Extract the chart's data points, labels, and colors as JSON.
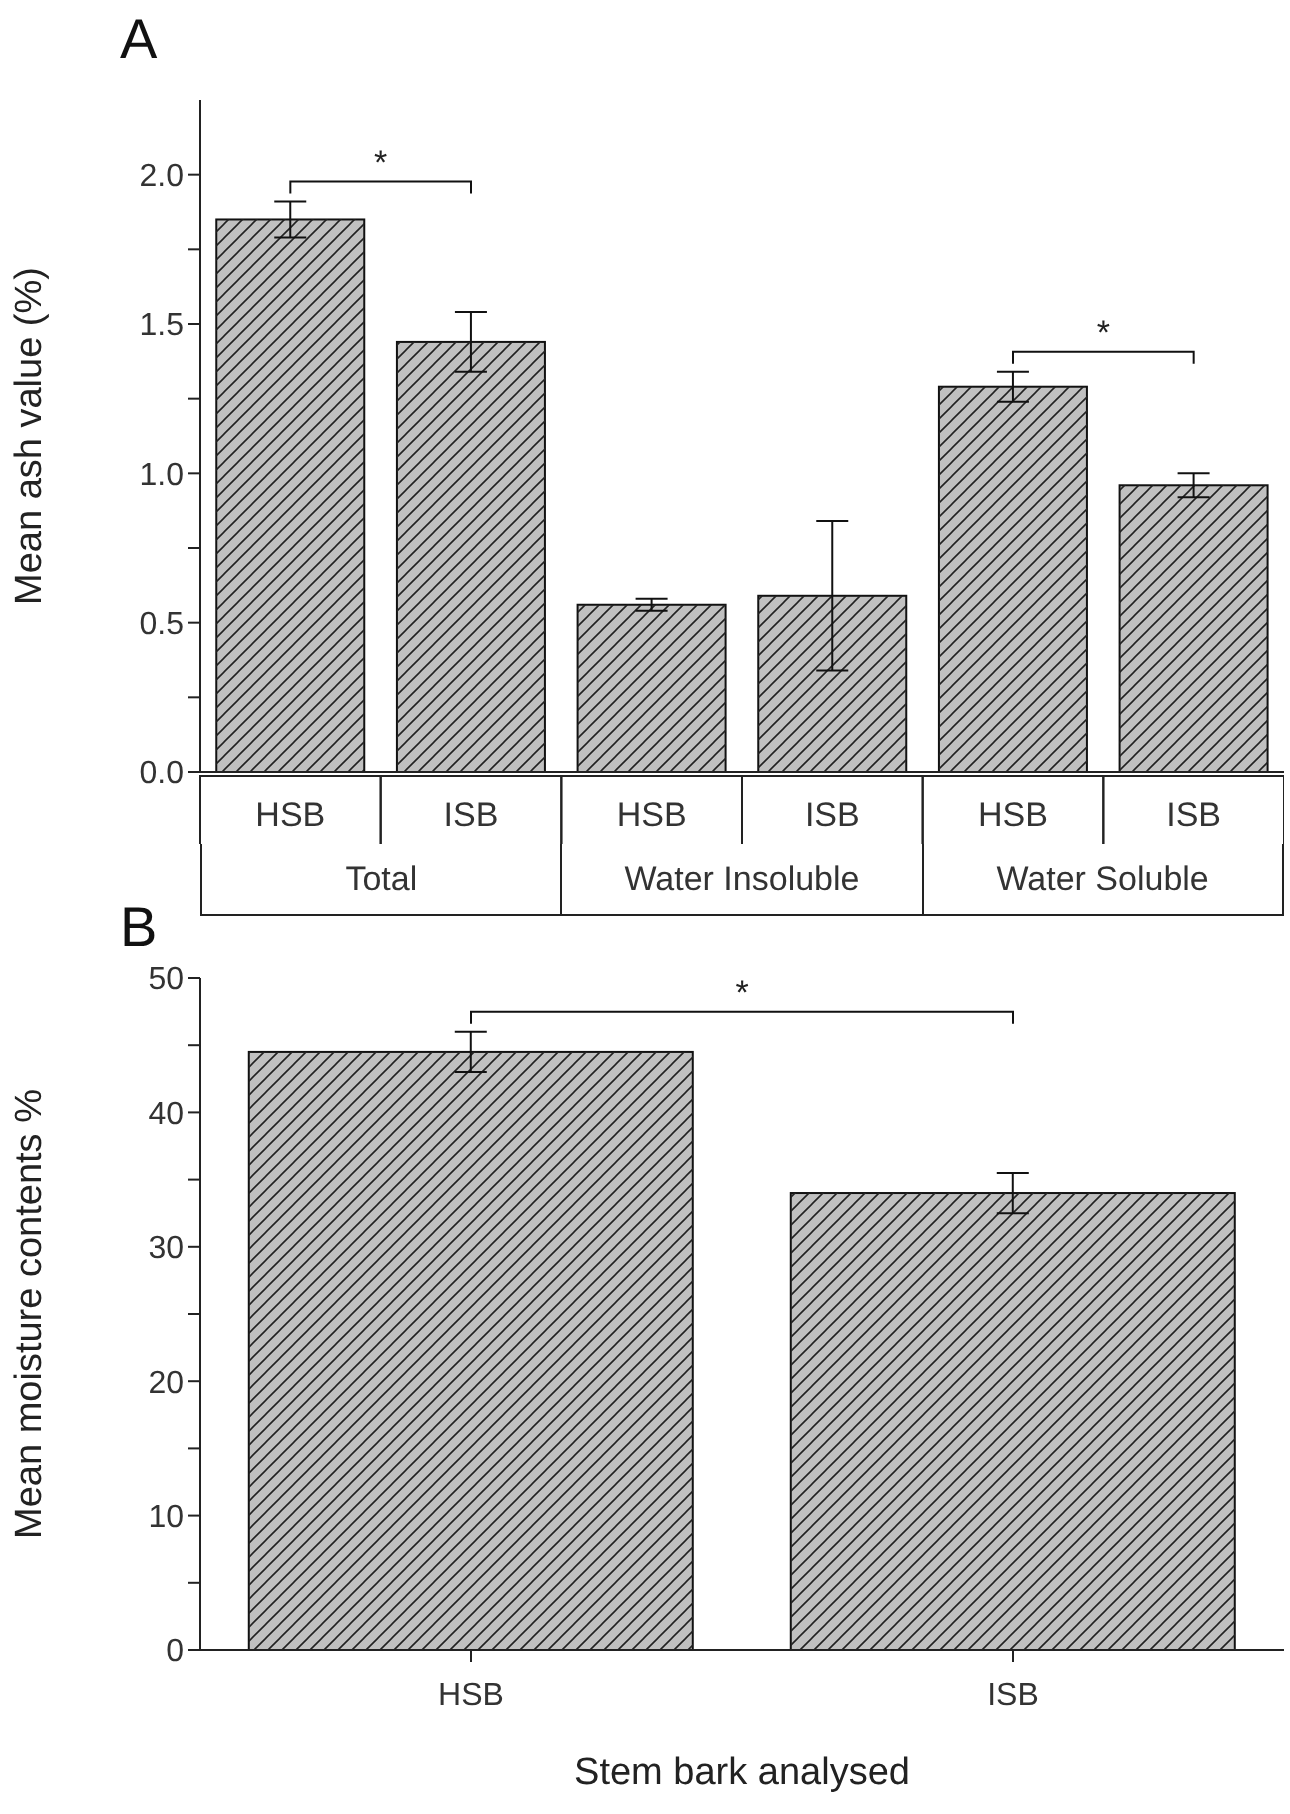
{
  "chart_data": [
    {
      "type": "bar",
      "title": "A",
      "ylabel": "Mean ash value (%)",
      "categories": [
        "HSB",
        "ISB",
        "HSB",
        "ISB",
        "HSB",
        "ISB"
      ],
      "values": [
        1.85,
        1.44,
        0.56,
        0.59,
        1.29,
        0.96
      ],
      "errors": [
        0.06,
        0.1,
        0.02,
        0.25,
        0.05,
        0.04
      ],
      "color": "#c0c0c0",
      "ylim": [
        0,
        2.25
      ],
      "yticks": [
        {
          "value": 0,
          "label": "0.0"
        },
        {
          "value": 0.25,
          "label": null
        },
        0.5,
        {
          "value": 0.75,
          "label": null
        },
        {
          "value": 1,
          "label": "1.0"
        },
        {
          "value": 1.25,
          "label": null
        },
        1.5,
        {
          "value": 1.75,
          "label": null
        },
        {
          "value": 2,
          "label": "2.0"
        }
      ],
      "annotations": [
        "*",
        "*",
        "Total",
        "Water Insoluble",
        "Water Soluble"
      ]
    },
    {
      "type": "bar",
      "title": "B",
      "ylabel": "Mean moisture contents %",
      "xlabel": "Stem bark analysed",
      "categories": [
        "HSB",
        "ISB"
      ],
      "values": [
        44.5,
        34.0
      ],
      "errors": [
        1.5,
        1.5
      ],
      "color": "#c0c0c0",
      "ylim": [
        0,
        50
      ],
      "yticks": [
        0,
        {
          "value": 5,
          "label": null
        },
        10,
        {
          "value": 15,
          "label": null
        },
        20,
        {
          "value": 25,
          "label": null
        },
        30,
        {
          "value": 35,
          "label": null
        },
        40,
        {
          "value": 45,
          "label": null
        },
        50
      ],
      "annotations": [
        "*"
      ]
    }
  ]
}
